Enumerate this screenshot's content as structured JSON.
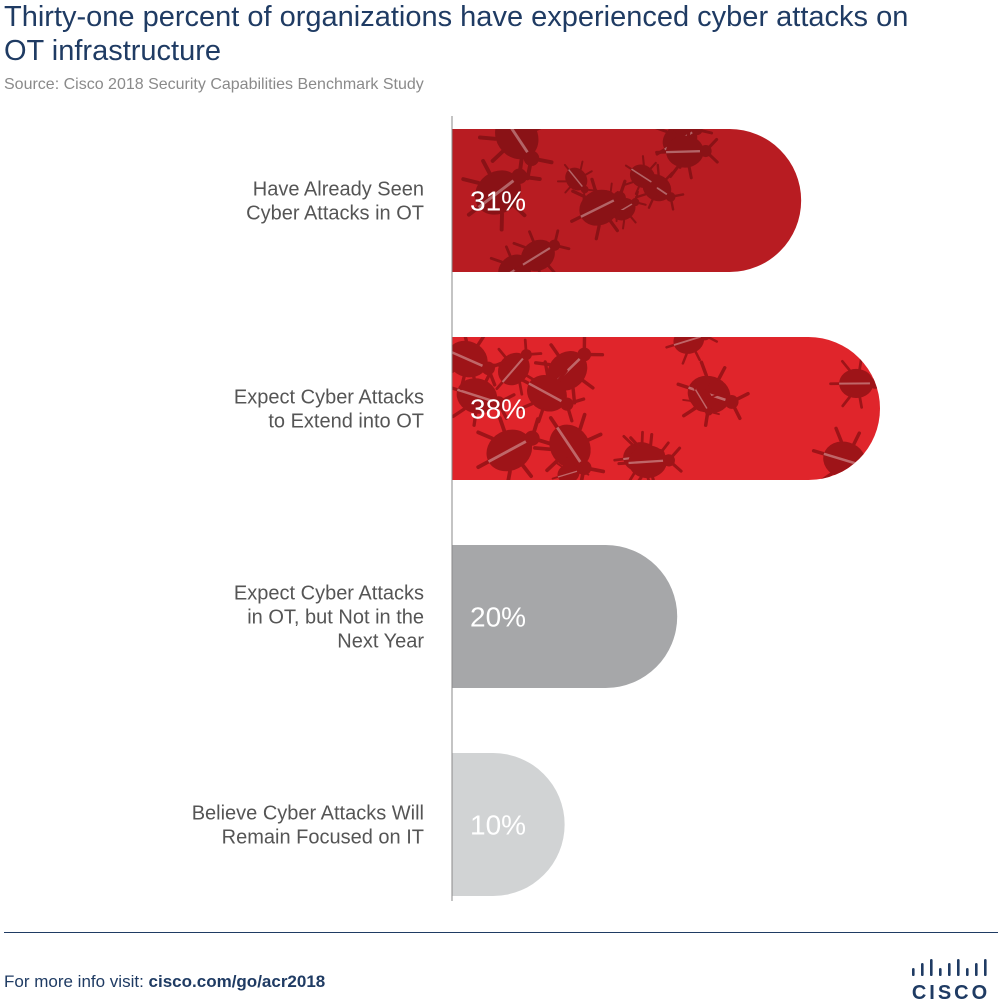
{
  "chart_data": {
    "type": "bar",
    "orientation": "horizontal",
    "title": "Thirty-one percent of organizations have experienced cyber attacks on OT infrastructure",
    "source": "Source: Cisco 2018 Security Capabilities Benchmark Study",
    "categories": [
      [
        "Have Already Seen",
        "Cyber Attacks in OT"
      ],
      [
        "Expect Cyber Attacks",
        "to Extend into OT"
      ],
      [
        "Expect Cyber Attacks",
        "in OT, but Not in the",
        "Next Year"
      ],
      [
        "Believe Cyber Attacks Will",
        "Remain Focused on IT"
      ]
    ],
    "values": [
      31,
      38,
      20,
      10
    ],
    "value_labels": [
      "31%",
      "38%",
      "20%",
      "10%"
    ],
    "colors": [
      "#b81c22",
      "#e0252b",
      "#a6a7a9",
      "#d1d3d4"
    ],
    "bug_colors": [
      "#8a1216",
      "#9e1418",
      null,
      null
    ],
    "xlim": [
      0,
      38
    ]
  },
  "footer": {
    "prefix": "For more info visit: ",
    "link": "cisco.com/go/acr2018"
  },
  "logo": {
    "word": "CISCO"
  }
}
